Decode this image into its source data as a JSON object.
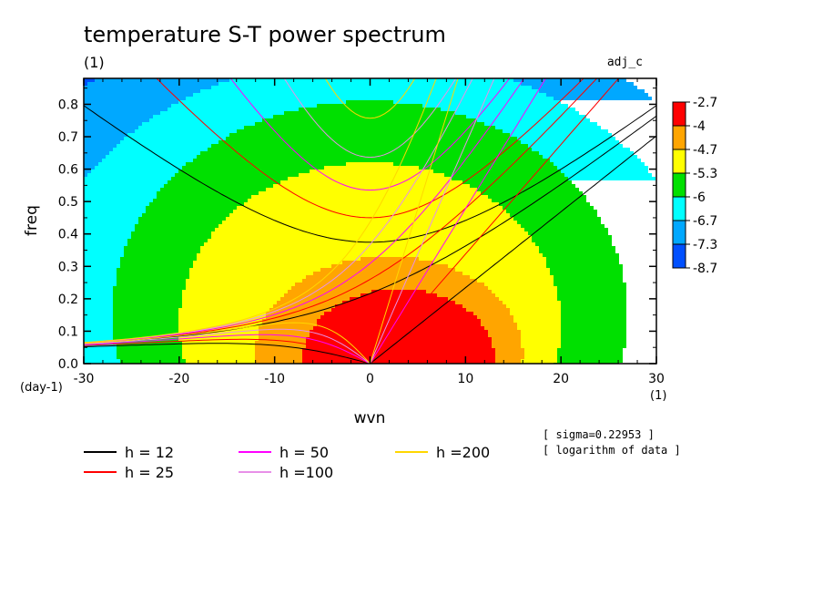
{
  "chart_data": {
    "type": "heatmap",
    "title": "temperature S-T power spectrum",
    "subtitle": "(1)",
    "variable_label": "adj_c",
    "xlabel": "wvn",
    "ylabel": "freq",
    "x_unit": "(1)",
    "y_unit": "(day-1)",
    "xlim": [
      -30,
      30
    ],
    "ylim": [
      0,
      0.88
    ],
    "x_ticks": [
      -30,
      -20,
      -10,
      0,
      10,
      20,
      30
    ],
    "x_tick_labels": [
      "-30",
      "-20",
      "-10",
      "0",
      "10",
      "20",
      "30"
    ],
    "y_ticks": [
      0.0,
      0.1,
      0.2,
      0.3,
      0.4,
      0.5,
      0.6,
      0.7,
      0.8
    ],
    "y_tick_labels": [
      "0.0",
      "0.1",
      "0.2",
      "0.3",
      "0.4",
      "0.5",
      "0.6",
      "0.7",
      "0.8"
    ],
    "colorbar": {
      "labels": [
        "-2.7",
        "-4",
        "-4.7",
        "-5.3",
        "-6",
        "-6.7",
        "-7.3",
        "-8.7"
      ],
      "colors": [
        "#ff0000",
        "#ffa500",
        "#ffff00",
        "#00e000",
        "#00ffff",
        "#00a8ff",
        "#0050ff"
      ]
    },
    "contour_levels": [
      -4,
      -4.7,
      -5.3,
      -6,
      -6.7,
      -7.3
    ],
    "dispersion_curves": [
      {
        "name": "h = 12",
        "h": 12,
        "color": "#000000"
      },
      {
        "name": "h = 25",
        "h": 25,
        "color": "#ff0000"
      },
      {
        "name": "h = 50",
        "h": 50,
        "color": "#ff00ff"
      },
      {
        "name": "h =100",
        "h": 100,
        "color": "#e890e8"
      },
      {
        "name": "h =200",
        "h": 200,
        "color": "#ffd700"
      }
    ],
    "notes": [
      "[ sigma=0.22953 ]",
      "[ logarithm of data ]"
    ]
  }
}
